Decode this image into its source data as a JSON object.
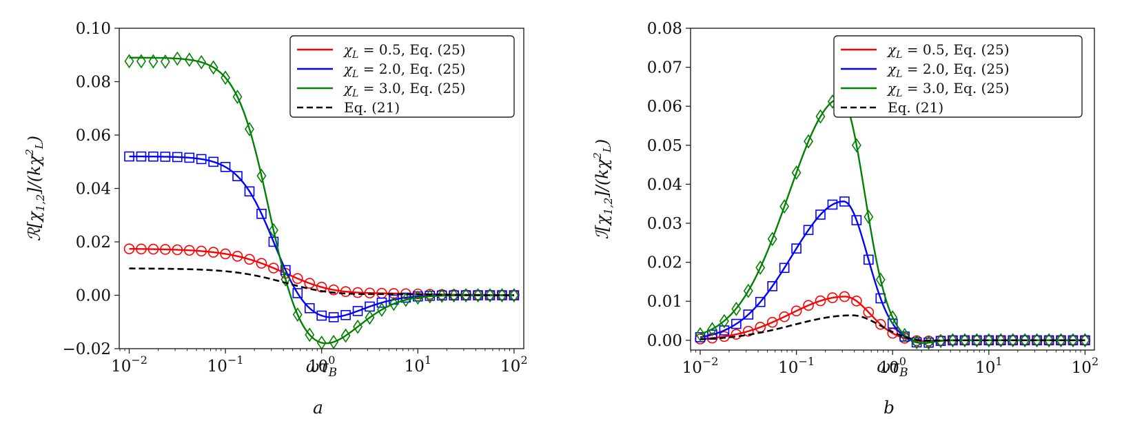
{
  "chart_data": [
    {
      "type": "line",
      "panel_label": "a",
      "xlabel": "ωτ_B",
      "ylabel": "ℛ[χ₁,₂]/(kχ²_L)",
      "xscale": "log",
      "xlim": [
        0.0075,
        140
      ],
      "ylim": [
        -0.02,
        0.1
      ],
      "xticks": [
        0.01,
        0.1,
        1,
        10,
        100
      ],
      "xtick_labels": [
        {
          "base": "10",
          "exp": "−2"
        },
        {
          "base": "10",
          "exp": "−1"
        },
        {
          "base": "10",
          "exp": "0"
        },
        {
          "base": "10",
          "exp": "1"
        },
        {
          "base": "10",
          "exp": "2"
        }
      ],
      "yticks": [
        -0.02,
        0.0,
        0.02,
        0.04,
        0.06,
        0.08,
        0.1
      ],
      "ytick_labels": [
        "−0.02",
        "0.00",
        "0.02",
        "0.04",
        "0.06",
        "0.08",
        "0.10"
      ],
      "grid": false,
      "legend_position": "top-right",
      "legend": [
        {
          "label": "χ_L = 0.5, Eq. (25)",
          "color": "#ff0000",
          "style": "solid"
        },
        {
          "label": "χ_L = 2.0, Eq. (25)",
          "color": "#0000ff",
          "style": "solid"
        },
        {
          "label": "χ_L = 3.0, Eq. (25)",
          "color": "#008000",
          "style": "solid"
        },
        {
          "label": "Eq. (21)",
          "color": "#000000",
          "style": "dashed"
        }
      ],
      "series": [
        {
          "name": "χ_L = 0.5, Eq. (25)",
          "color": "#ff0000",
          "marker": "circle",
          "kind": "re",
          "a0": 0.0175,
          "tau": 1.55,
          "n": 1.0,
          "dip": 0.0035
        },
        {
          "name": "χ_L = 2.0, Eq. (25)",
          "color": "#0000ff",
          "marker": "square",
          "kind": "re",
          "a0": 0.052,
          "tau": 3.1,
          "n": 2.0,
          "dip": 0.011
        },
        {
          "name": "χ_L = 3.0, Eq. (25)",
          "color": "#008000",
          "marker": "diamond",
          "kind": "re",
          "a0": 0.089,
          "tau": 3.6,
          "n": 2.2,
          "dip": 0.021
        },
        {
          "name": "Eq. (21)",
          "color": "#000000",
          "marker": "none",
          "kind": "re",
          "a0": 0.0101,
          "tau": 1.4,
          "n": 1.0,
          "dip": 0.0025
        }
      ]
    },
    {
      "type": "line",
      "panel_label": "b",
      "xlabel": "ωτ_B",
      "ylabel": "ℐ[χ₁,₂]/(kχ²_L)",
      "xscale": "log",
      "xlim": [
        0.0075,
        140
      ],
      "ylim": [
        -0.0025,
        0.08
      ],
      "xticks": [
        0.01,
        0.1,
        1,
        10,
        100
      ],
      "xtick_labels": [
        {
          "base": "10",
          "exp": "−2"
        },
        {
          "base": "10",
          "exp": "−1"
        },
        {
          "base": "10",
          "exp": "0"
        },
        {
          "base": "10",
          "exp": "1"
        },
        {
          "base": "10",
          "exp": "2"
        }
      ],
      "yticks": [
        0.0,
        0.01,
        0.02,
        0.03,
        0.04,
        0.05,
        0.06,
        0.07,
        0.08
      ],
      "ytick_labels": [
        "0.00",
        "0.01",
        "0.02",
        "0.03",
        "0.04",
        "0.05",
        "0.06",
        "0.07",
        "0.08"
      ],
      "grid": false,
      "legend_position": "top-right",
      "legend": [
        {
          "label": "χ_L = 0.5, Eq. (25)",
          "color": "#ff0000",
          "style": "solid"
        },
        {
          "label": "χ_L = 2.0, Eq. (25)",
          "color": "#0000ff",
          "style": "solid"
        },
        {
          "label": "χ_L = 3.0, Eq. (25)",
          "color": "#008000",
          "style": "solid"
        },
        {
          "label": "Eq. (21)",
          "color": "#000000",
          "style": "dashed"
        }
      ],
      "series": [
        {
          "name": "χ_L = 0.5, Eq. (25)",
          "color": "#ff0000",
          "marker": "circle",
          "kind": "im",
          "peak": 0.0112,
          "xpeak": 0.32,
          "width": 0.42
        },
        {
          "name": "χ_L = 2.0, Eq. (25)",
          "color": "#0000ff",
          "marker": "square",
          "kind": "im",
          "peak": 0.0356,
          "xpeak": 0.31,
          "width": 0.4
        },
        {
          "name": "χ_L = 3.0, Eq. (25)",
          "color": "#008000",
          "marker": "diamond",
          "kind": "im",
          "peak": 0.062,
          "xpeak": 0.29,
          "width": 0.4
        },
        {
          "name": "Eq. (21)",
          "color": "#000000",
          "marker": "none",
          "kind": "im",
          "peak": 0.0064,
          "xpeak": 0.38,
          "width": 0.46
        }
      ]
    }
  ]
}
